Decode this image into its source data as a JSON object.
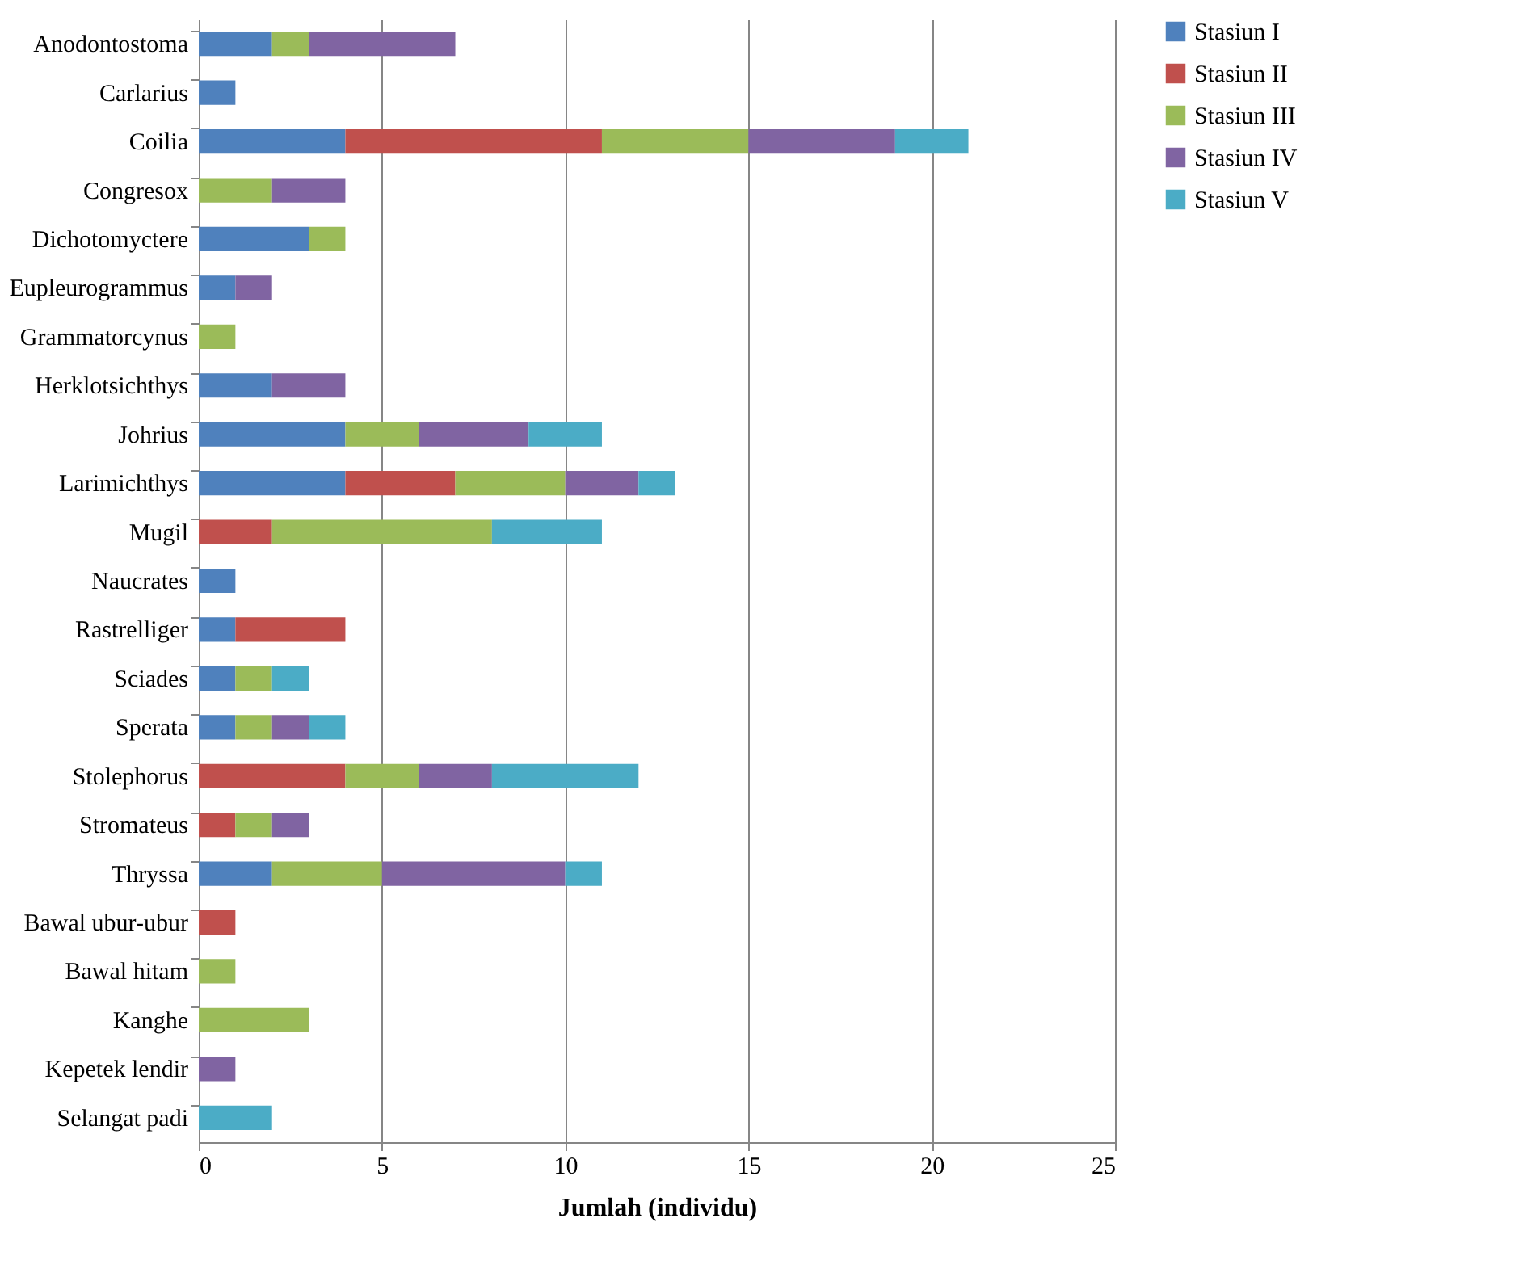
{
  "chart_data": {
    "type": "bar",
    "orientation": "horizontal",
    "stacked": true,
    "xlabel": "Jumlah (individu)",
    "categories": [
      "Anodontostoma",
      "Carlarius",
      "Coilia",
      "Congresox",
      "Dichotomyctere",
      "Eupleurogrammus",
      "Grammatorcynus",
      "Herklotsichthys",
      "Johrius",
      "Larimichthys",
      "Mugil",
      "Naucrates",
      "Rastrelliger",
      "Sciades",
      "Sperata",
      "Stolephorus",
      "Stromateus",
      "Thryssa",
      "Bawal ubur-ubur",
      "Bawal hitam",
      "Kanghe",
      "Kepetek lendir",
      "Selangat padi"
    ],
    "series": [
      {
        "name": "Stasiun I",
        "color": "#4f81bd",
        "values": [
          2,
          1,
          4,
          null,
          3,
          1,
          null,
          2,
          4,
          4,
          null,
          1,
          1,
          1,
          1,
          null,
          null,
          2,
          null,
          null,
          null,
          null,
          null
        ]
      },
      {
        "name": "Stasiun II",
        "color": "#c0504d",
        "values": [
          null,
          null,
          7,
          null,
          null,
          null,
          null,
          null,
          null,
          3,
          2,
          null,
          3,
          null,
          null,
          4,
          1,
          null,
          1,
          null,
          null,
          null,
          null
        ]
      },
      {
        "name": "Stasiun III",
        "color": "#9bbb59",
        "values": [
          1,
          null,
          4,
          2,
          1,
          null,
          1,
          null,
          2,
          3,
          6,
          null,
          null,
          1,
          1,
          2,
          1,
          3,
          null,
          1,
          3,
          null,
          null
        ]
      },
      {
        "name": "Stasiun IV",
        "color": "#8064a2",
        "values": [
          4,
          null,
          4,
          2,
          null,
          1,
          null,
          2,
          3,
          2,
          null,
          null,
          null,
          null,
          1,
          2,
          1,
          5,
          null,
          null,
          null,
          1,
          null
        ]
      },
      {
        "name": "Stasiun V",
        "color": "#4bacc6",
        "values": [
          null,
          null,
          2,
          null,
          null,
          null,
          null,
          null,
          2,
          1,
          3,
          null,
          null,
          1,
          1,
          4,
          null,
          1,
          null,
          null,
          null,
          null,
          2
        ]
      }
    ],
    "xlim": [
      0,
      25
    ],
    "xticks": [
      0,
      5,
      10,
      15,
      20,
      25
    ],
    "grid": "x",
    "legend": "right"
  }
}
